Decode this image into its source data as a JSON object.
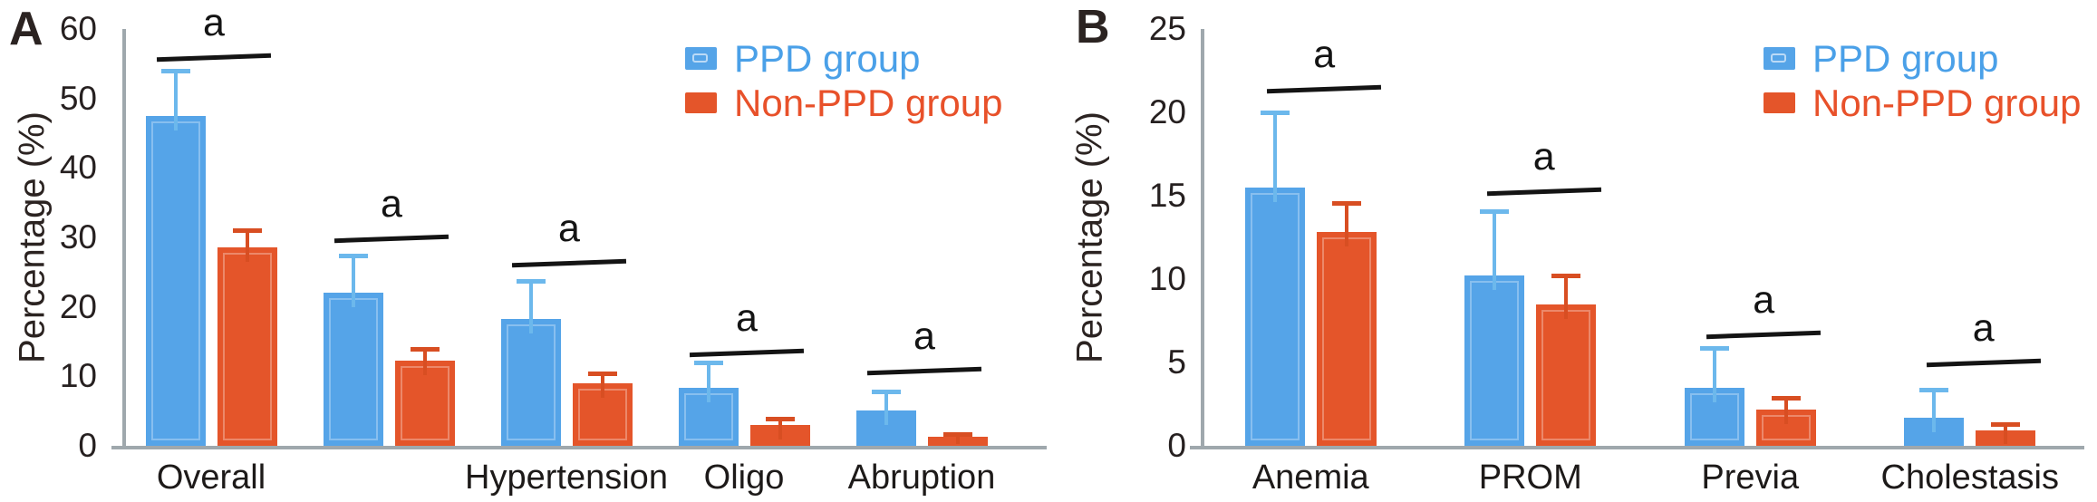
{
  "figure_title": "",
  "style": {
    "background": "#ffffff",
    "axis_color": "#9fa8ad",
    "text_color": "#262020",
    "significance_color": "#141414"
  },
  "chart_data": [
    {
      "type": "bar",
      "panel_label": "A",
      "ylabel": "Percentage (%)",
      "ylim": [
        0,
        60
      ],
      "yticks": [
        0,
        10,
        20,
        30,
        40,
        50,
        60
      ],
      "grid": false,
      "legend_position": "top-right",
      "categories": [
        "Overall",
        "",
        "Hypertension",
        "Oligo",
        "Abruption"
      ],
      "series": [
        {
          "name": "PPD group",
          "color": "#55a4e8",
          "error_color": "#6cb8ec",
          "values": [
            47.5,
            22.0,
            18.3,
            8.3,
            5.1
          ],
          "errors": [
            6.7,
            5.6,
            5.7,
            4.0,
            3.0
          ]
        },
        {
          "name": "Non-PPD group",
          "color": "#e4552a",
          "error_color": "#d84e22",
          "values": [
            28.6,
            12.3,
            9.0,
            3.0,
            1.3
          ],
          "errors": [
            2.7,
            1.9,
            1.7,
            1.2,
            0.7
          ]
        }
      ],
      "significance": [
        {
          "group": 0,
          "label": "a",
          "y": 56.2
        },
        {
          "group": 1,
          "label": "a",
          "y": 30.1
        },
        {
          "group": 2,
          "label": "a",
          "y": 26.6
        },
        {
          "group": 3,
          "label": "a",
          "y": 13.7
        },
        {
          "group": 4,
          "label": "a",
          "y": 11.1
        }
      ]
    },
    {
      "type": "bar",
      "panel_label": "B",
      "ylabel": "Percentage (%)",
      "ylim": [
        0,
        25
      ],
      "yticks": [
        0,
        5,
        10,
        15,
        20,
        25
      ],
      "grid": false,
      "legend_position": "top-right",
      "categories": [
        "Anemia",
        "PROM",
        "Previa",
        "Cholestasis"
      ],
      "series": [
        {
          "name": "PPD group",
          "color": "#55a4e8",
          "error_color": "#6cb8ec",
          "values": [
            15.5,
            10.2,
            3.5,
            1.7
          ],
          "errors": [
            4.6,
            4.0,
            2.5,
            1.8
          ]
        },
        {
          "name": "Non-PPD group",
          "color": "#e4552a",
          "error_color": "#d84e22",
          "values": [
            12.8,
            8.5,
            2.2,
            0.9
          ],
          "errors": [
            1.9,
            1.8,
            0.8,
            0.5
          ]
        }
      ],
      "significance": [
        {
          "group": 0,
          "label": "a",
          "y": 21.5
        },
        {
          "group": 1,
          "label": "a",
          "y": 15.4
        },
        {
          "group": 2,
          "label": "a",
          "y": 6.8
        },
        {
          "group": 3,
          "label": "a",
          "y": 5.1
        }
      ]
    }
  ]
}
